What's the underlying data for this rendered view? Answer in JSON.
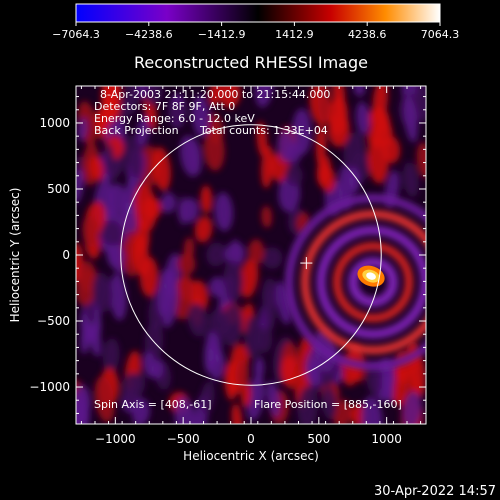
{
  "chart_data": {
    "type": "heatmap",
    "title": "Reconstructed RHESSI Image",
    "xlabel": "Heliocentric X (arcsec)",
    "ylabel": "Heliocentric Y (arcsec)",
    "xlim": [
      -1290,
      1290
    ],
    "ylim": [
      -1280,
      1280
    ],
    "x_ticks": [
      -1000,
      -500,
      0,
      500,
      1000
    ],
    "y_ticks": [
      -1000,
      -500,
      0,
      500,
      1000
    ],
    "x_tick_labels": [
      "-1000",
      "-500",
      "0",
      "500",
      "1000"
    ],
    "y_tick_labels": [
      "-1000",
      "-500",
      "0",
      "500",
      "1000"
    ],
    "colorbar": {
      "range": [
        -7064.3,
        7064.3
      ],
      "tick_labels": [
        "-7064.3",
        "-4238.6",
        "-1412.9",
        "1412.9",
        "4238.6",
        "7064.3"
      ],
      "colors": [
        "#0000ff",
        "#7a00c8",
        "#000000",
        "#c80000",
        "#ff8c00",
        "#ffffff"
      ]
    },
    "annotations": {
      "time_range": "8-Apr-2003 21:11:20.000 to 21:15:44.000",
      "detectors": "Detectors: 7F 8F 9F, Att 0",
      "energy_range": "Energy Range: 6.0 - 12.0 keV",
      "method": "Back Projection",
      "total_counts": "Total counts: 1.33E+04",
      "spin_axis_label": "Spin Axis = [408,-61]",
      "flare_position_label": "Flare Position = [885,-160]"
    },
    "spin_axis": [
      408,
      -61
    ],
    "flare_position": [
      885,
      -160
    ],
    "solar_limb_radius_arcsec": 960,
    "solar_limb_center": [
      0,
      0
    ]
  },
  "footer": {
    "timestamp": "30-Apr-2022 14:57"
  }
}
